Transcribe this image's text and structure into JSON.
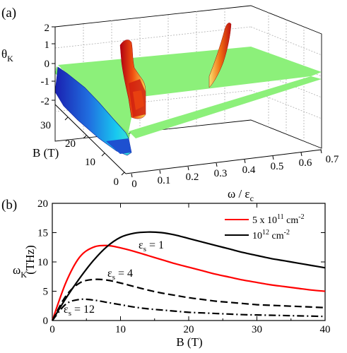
{
  "panel_a": {
    "label": "(a)",
    "zlabel": "θ",
    "zlabel_sub": "K",
    "ylabel": "B (T)",
    "xlabel": "ω / ε",
    "xlabel_sub": "c",
    "z_ticks": [
      "2",
      "1",
      "0",
      "-1",
      "-2"
    ],
    "y_ticks": [
      "30",
      "20",
      "10",
      "0"
    ],
    "x_ticks": [
      "0",
      "0.1",
      "0.2",
      "0.3",
      "0.4",
      "0.5",
      "0.6",
      "0.7"
    ],
    "colors": {
      "surface": "#8cf07a",
      "low": "#2030c8",
      "low_edge": "#18c8e8",
      "peak_dark": "#c01010",
      "peak_mid": "#f06010",
      "peak_light": "#f8d040"
    }
  },
  "panel_b": {
    "label": "(b)",
    "ylabel": "ω",
    "ylabel_sub": "K",
    "ylabel_unit": "(THz)",
    "xlabel": "B (T)",
    "legend": [
      {
        "prefix": "5 x 10",
        "sup1": "11",
        "mid": " cm",
        "sup2": "-2",
        "color": "#ff0000"
      },
      {
        "prefix": "10",
        "sup1": "12",
        "mid": " cm",
        "sup2": "-2",
        "color": "#000000"
      }
    ],
    "annotations": [
      {
        "base": "ε",
        "sub": "s",
        "rest": " = 1"
      },
      {
        "base": "ε",
        "sub": "s",
        "rest": " = 4"
      },
      {
        "base": "ε",
        "sub": "s",
        "rest": " = 12"
      }
    ]
  },
  "chart_data": [
    {
      "type": "surface",
      "title": "",
      "xlabel": "ω / εc",
      "ylabel": "B (T)",
      "zlabel": "θK",
      "xlim": [
        0,
        0.7
      ],
      "ylim": [
        0,
        35
      ],
      "zlim": [
        -2,
        2
      ],
      "description_values": {
        "flat_level": 0,
        "low_frequency_edge": -2,
        "peaks": [
          {
            "x": 0.12,
            "z_max": 1.8
          },
          {
            "x": 0.45,
            "z_max": 1.8
          }
        ]
      }
    },
    {
      "type": "line",
      "title": "",
      "xlabel": "B (T)",
      "ylabel": "ωK (THz)",
      "xlim": [
        0,
        40
      ],
      "ylim": [
        0,
        20
      ],
      "xticks": [
        0,
        10,
        20,
        30,
        40
      ],
      "yticks": [
        0,
        5,
        10,
        15,
        20
      ],
      "x": [
        0,
        2,
        4,
        6,
        8,
        10,
        12,
        14,
        16,
        18,
        20,
        22,
        24,
        26,
        28,
        30,
        32,
        34,
        36,
        38,
        40
      ],
      "series": [
        {
          "name": "5 x 10^11 cm^-2",
          "style": "solid",
          "color": "#ff0000",
          "values": [
            0,
            6.5,
            10.8,
            12.5,
            12.8,
            12.4,
            11.8,
            11.1,
            10.4,
            9.7,
            9.1,
            8.5,
            7.9,
            7.4,
            6.9,
            6.5,
            6.1,
            5.8,
            5.5,
            5.2,
            5.0
          ]
        },
        {
          "name": "10^12 cm^-2",
          "style": "solid",
          "color": "#000000",
          "values": [
            0,
            3.8,
            7.2,
            10.2,
            12.6,
            14.2,
            14.9,
            15.1,
            15.0,
            14.6,
            14.0,
            13.4,
            12.8,
            12.2,
            11.6,
            11.1,
            10.6,
            10.2,
            9.8,
            9.4,
            9.0
          ]
        },
        {
          "name": "",
          "style": "dashed",
          "color": "#000000",
          "values": [
            0,
            4.2,
            6.4,
            7.0,
            6.9,
            6.4,
            5.8,
            5.2,
            4.7,
            4.3,
            3.9,
            3.6,
            3.3,
            3.1,
            2.9,
            2.7,
            2.6,
            2.5,
            2.4,
            2.3,
            2.2
          ]
        },
        {
          "name": "",
          "style": "dashdot",
          "color": "#000000",
          "values": [
            0,
            2.8,
            3.6,
            3.5,
            3.1,
            2.7,
            2.3,
            2.0,
            1.8,
            1.6,
            1.4,
            1.3,
            1.2,
            1.1,
            1.0,
            0.95,
            0.9,
            0.85,
            0.8,
            0.75,
            0.7
          ]
        }
      ]
    }
  ]
}
